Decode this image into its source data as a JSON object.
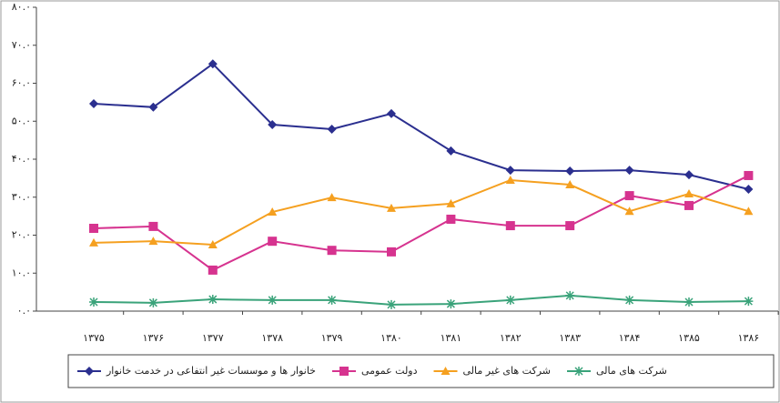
{
  "chart_data": {
    "type": "line",
    "categories": [
      "۱۳۷۵",
      "۱۳۷۶",
      "۱۳۷۷",
      "۱۳۷۸",
      "۱۳۷۹",
      "۱۳۸۰",
      "۱۳۸۱",
      "۱۳۸۲",
      "۱۳۸۳",
      "۱۳۸۴",
      "۱۳۸۵",
      "۱۳۸۶"
    ],
    "series": [
      {
        "name": "خانوار ها و موسسات غیر انتفاعی در خدمت خانوار",
        "color": "#2b2f8f",
        "marker": "diamond",
        "values": [
          54.6,
          53.7,
          65.1,
          49.1,
          47.9,
          52.0,
          42.2,
          37.1,
          36.9,
          37.1,
          35.9,
          32.1
        ]
      },
      {
        "name": "دولت عمومی",
        "color": "#d6338f",
        "marker": "square",
        "values": [
          21.8,
          22.3,
          10.8,
          18.4,
          16.0,
          15.6,
          24.2,
          22.5,
          22.5,
          30.4,
          27.8,
          35.7
        ]
      },
      {
        "name": "شرکت های غیر مالی",
        "color": "#f5a020",
        "marker": "triangle",
        "values": [
          18.0,
          18.4,
          17.5,
          26.1,
          29.9,
          27.1,
          28.3,
          34.5,
          33.3,
          26.3,
          30.9,
          26.3
        ]
      },
      {
        "name": "شرکت های مالی",
        "color": "#3aa37a",
        "marker": "star",
        "values": [
          2.4,
          2.2,
          3.1,
          2.9,
          2.9,
          1.7,
          1.9,
          2.9,
          4.1,
          2.9,
          2.4,
          2.6
        ]
      }
    ],
    "ylim": [
      0,
      80
    ],
    "yticks": [
      {
        "value": 0,
        "label": "۰.۰"
      },
      {
        "value": 10,
        "label": "۱۰.۰"
      },
      {
        "value": 20,
        "label": "۲۰.۰"
      },
      {
        "value": 30,
        "label": "۳۰.۰"
      },
      {
        "value": 40,
        "label": "۴۰.۰"
      },
      {
        "value": 50,
        "label": "۵۰.۰"
      },
      {
        "value": 60,
        "label": "۶۰.۰"
      },
      {
        "value": 70,
        "label": "۷۰.۰"
      },
      {
        "value": 80,
        "label": "۸۰.۰"
      }
    ],
    "grid": false
  }
}
